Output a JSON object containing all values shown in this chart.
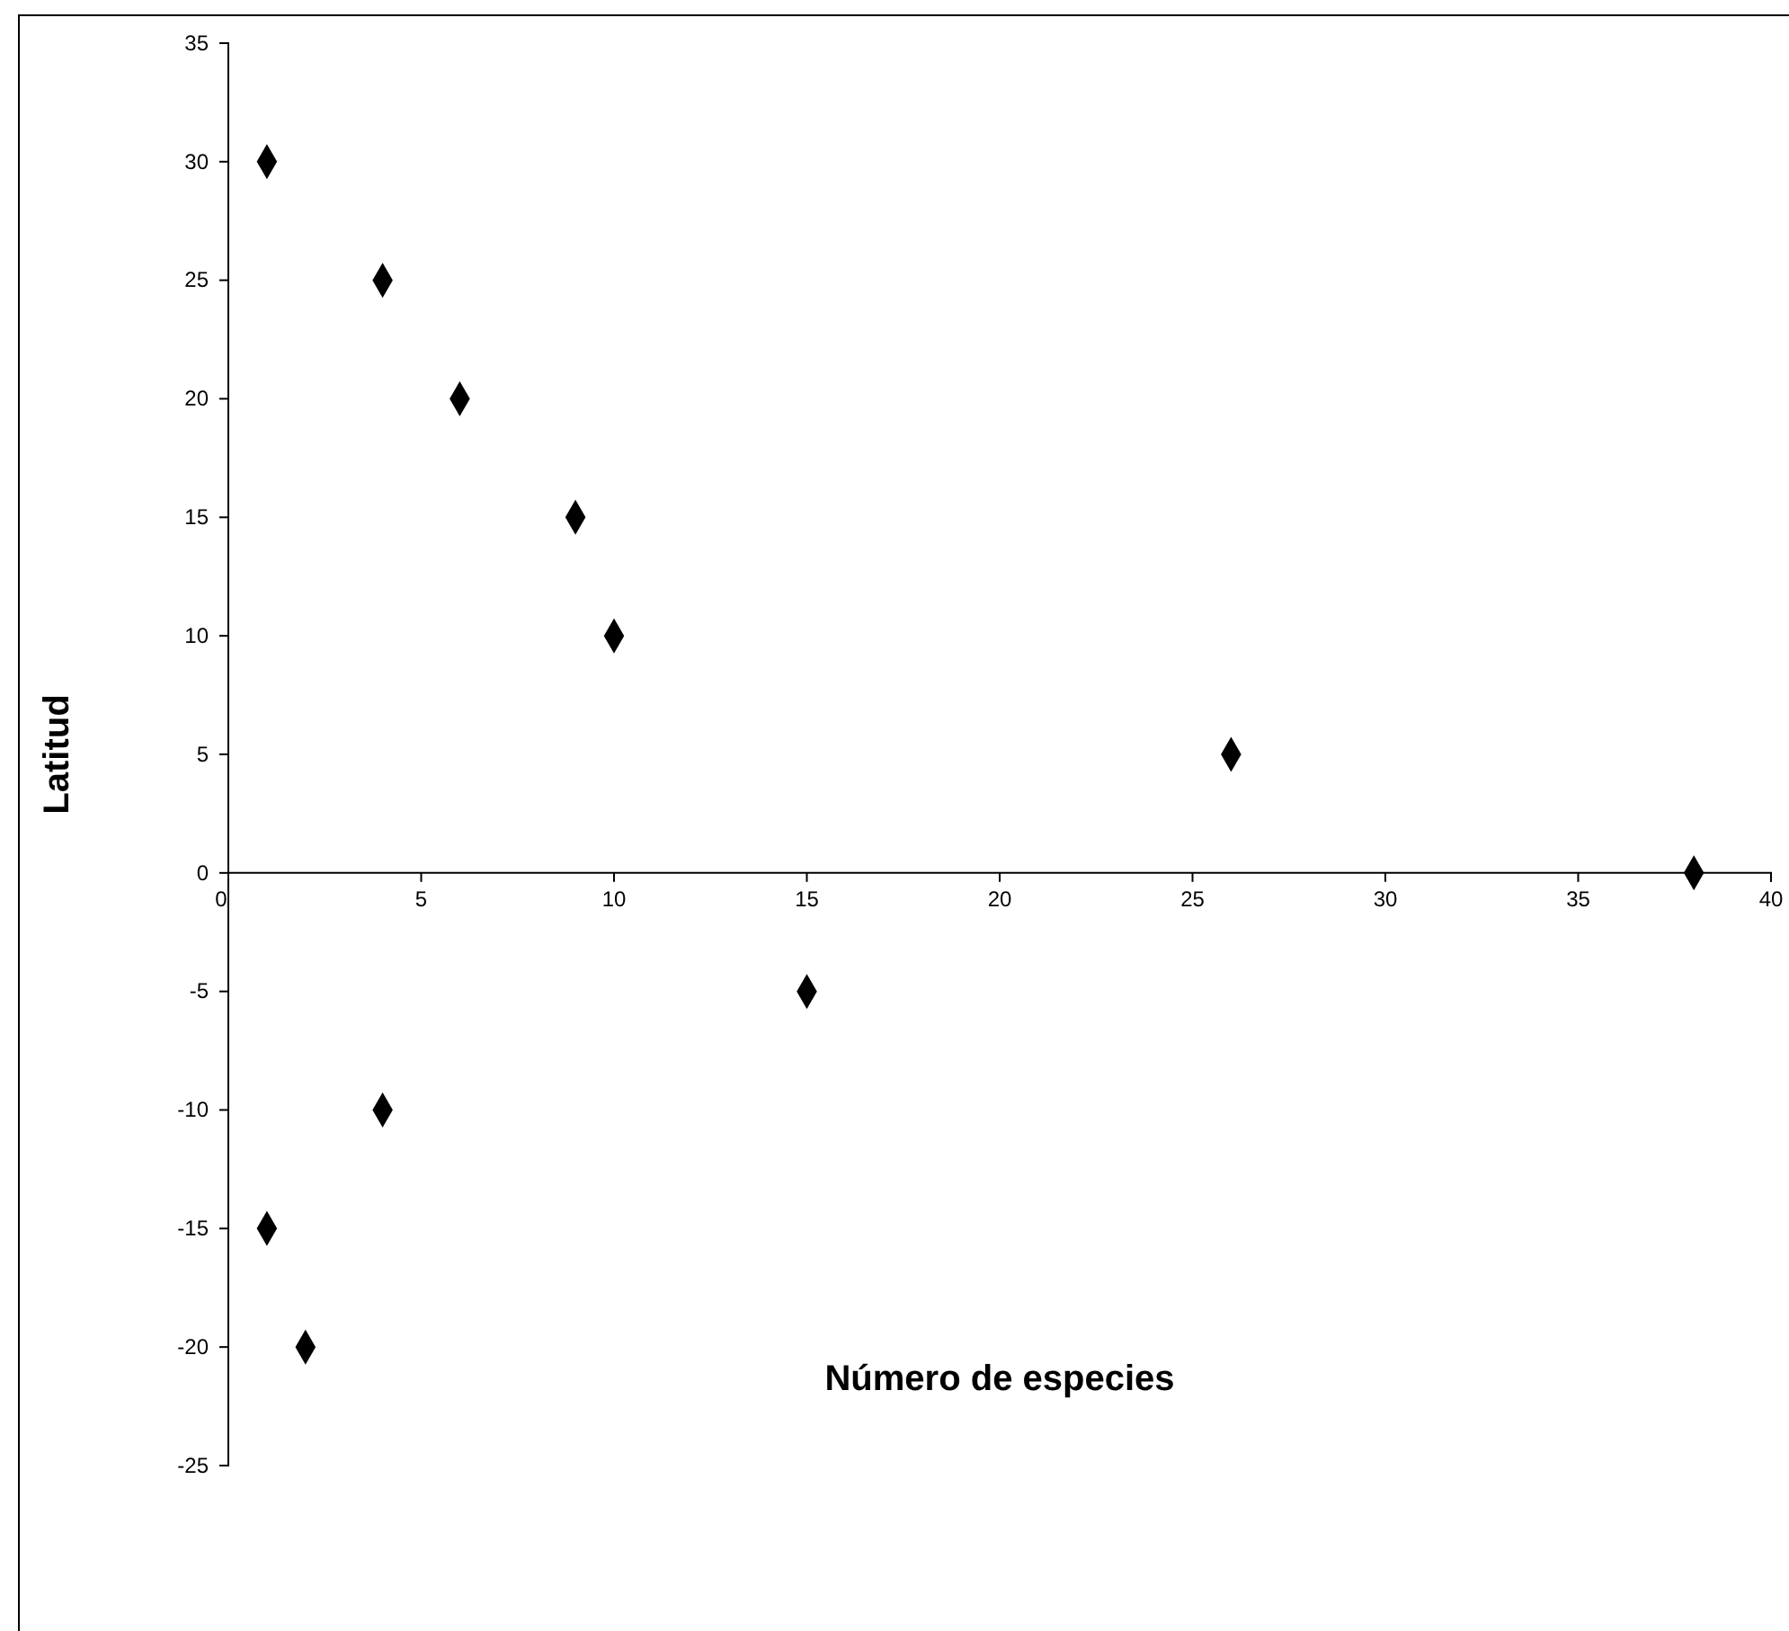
{
  "chart_data": {
    "type": "scatter",
    "xlabel": "Número de especies",
    "ylabel": "Latitud",
    "x": [
      1,
      4,
      6,
      9,
      10,
      26,
      38,
      15,
      4,
      1,
      2
    ],
    "series": [
      {
        "color": "#000000",
        "values": [
          30,
          25,
          20,
          15,
          10,
          5,
          0,
          -5,
          -10,
          -15,
          -20
        ]
      }
    ],
    "xlim": [
      0,
      40
    ],
    "xticks": [
      0,
      5,
      10,
      15,
      20,
      25,
      30,
      35,
      40
    ],
    "ylim": [
      -25,
      35
    ],
    "yticks": [
      -25,
      -20,
      -15,
      -10,
      -5,
      0,
      5,
      10,
      15,
      20,
      25,
      30,
      35
    ],
    "marker": "diamond",
    "grid": false
  }
}
